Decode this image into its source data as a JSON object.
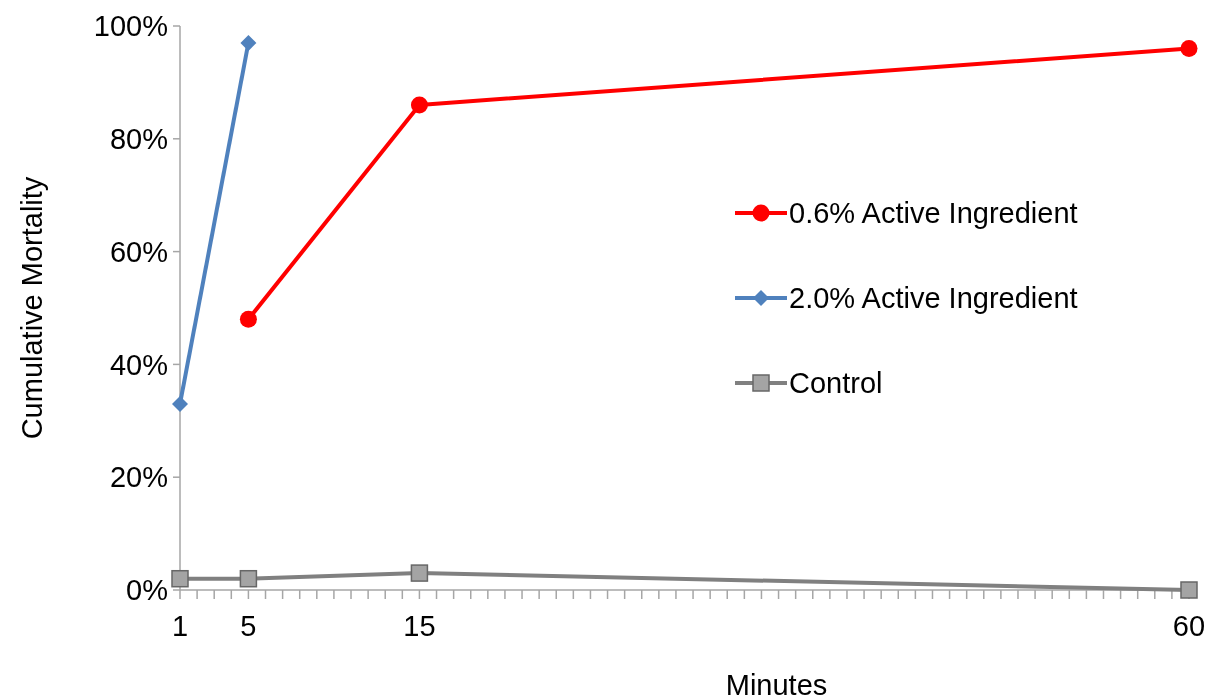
{
  "chart_data": {
    "type": "line",
    "xlabel": "Minutes",
    "ylabel": "Cumulative Mortality",
    "xlim": [
      1,
      60
    ],
    "xticks": [
      1,
      {
        "value": 2,
        "label": null
      },
      {
        "value": 3,
        "label": null
      },
      {
        "value": 4,
        "label": null
      },
      5,
      {
        "value": 6,
        "label": null
      },
      {
        "value": 7,
        "label": null
      },
      {
        "value": 8,
        "label": null
      },
      {
        "value": 9,
        "label": null
      },
      {
        "value": 10,
        "label": null
      },
      {
        "value": 11,
        "label": null
      },
      {
        "value": 12,
        "label": null
      },
      {
        "value": 13,
        "label": null
      },
      {
        "value": 14,
        "label": null
      },
      15,
      {
        "value": 16,
        "label": null
      },
      {
        "value": 17,
        "label": null
      },
      {
        "value": 18,
        "label": null
      },
      {
        "value": 19,
        "label": null
      },
      {
        "value": 20,
        "label": null
      },
      {
        "value": 21,
        "label": null
      },
      {
        "value": 22,
        "label": null
      },
      {
        "value": 23,
        "label": null
      },
      {
        "value": 24,
        "label": null
      },
      {
        "value": 25,
        "label": null
      },
      {
        "value": 26,
        "label": null
      },
      {
        "value": 27,
        "label": null
      },
      {
        "value": 28,
        "label": null
      },
      {
        "value": 29,
        "label": null
      },
      {
        "value": 30,
        "label": null
      },
      {
        "value": 31,
        "label": null
      },
      {
        "value": 32,
        "label": null
      },
      {
        "value": 33,
        "label": null
      },
      {
        "value": 34,
        "label": null
      },
      {
        "value": 35,
        "label": null
      },
      {
        "value": 36,
        "label": null
      },
      {
        "value": 37,
        "label": null
      },
      {
        "value": 38,
        "label": null
      },
      {
        "value": 39,
        "label": null
      },
      {
        "value": 40,
        "label": null
      },
      {
        "value": 41,
        "label": null
      },
      {
        "value": 42,
        "label": null
      },
      {
        "value": 43,
        "label": null
      },
      {
        "value": 44,
        "label": null
      },
      {
        "value": 45,
        "label": null
      },
      {
        "value": 46,
        "label": null
      },
      {
        "value": 47,
        "label": null
      },
      {
        "value": 48,
        "label": null
      },
      {
        "value": 49,
        "label": null
      },
      {
        "value": 50,
        "label": null
      },
      {
        "value": 51,
        "label": null
      },
      {
        "value": 52,
        "label": null
      },
      {
        "value": 53,
        "label": null
      },
      {
        "value": 54,
        "label": null
      },
      {
        "value": 55,
        "label": null
      },
      {
        "value": 56,
        "label": null
      },
      {
        "value": 57,
        "label": null
      },
      {
        "value": 58,
        "label": null
      },
      {
        "value": 59,
        "label": null
      },
      60
    ],
    "ylim": [
      0,
      100
    ],
    "yticks": [
      {
        "value": 0,
        "label": "0%"
      },
      {
        "value": 20,
        "label": "20%"
      },
      {
        "value": 40,
        "label": "40%"
      },
      {
        "value": 60,
        "label": "60%"
      },
      {
        "value": 80,
        "label": "80%"
      },
      {
        "value": 100,
        "label": "100%"
      }
    ],
    "grid": false,
    "legend": "right",
    "line_style": "solid",
    "series": [
      {
        "name": "0.6% Active Ingredient",
        "color": "#ff0000",
        "marker": "circle",
        "x": [
          5,
          15,
          60
        ],
        "values": [
          48,
          86,
          96
        ]
      },
      {
        "name": "2.0% Active Ingredient",
        "color": "#4f81bd",
        "marker": "diamond",
        "x": [
          1,
          5
        ],
        "values": [
          33,
          97
        ]
      },
      {
        "name": "Control",
        "color": "#808080",
        "marker": "square",
        "x": [
          1,
          5,
          15,
          60
        ],
        "values": [
          2,
          2,
          3,
          0
        ]
      }
    ]
  }
}
